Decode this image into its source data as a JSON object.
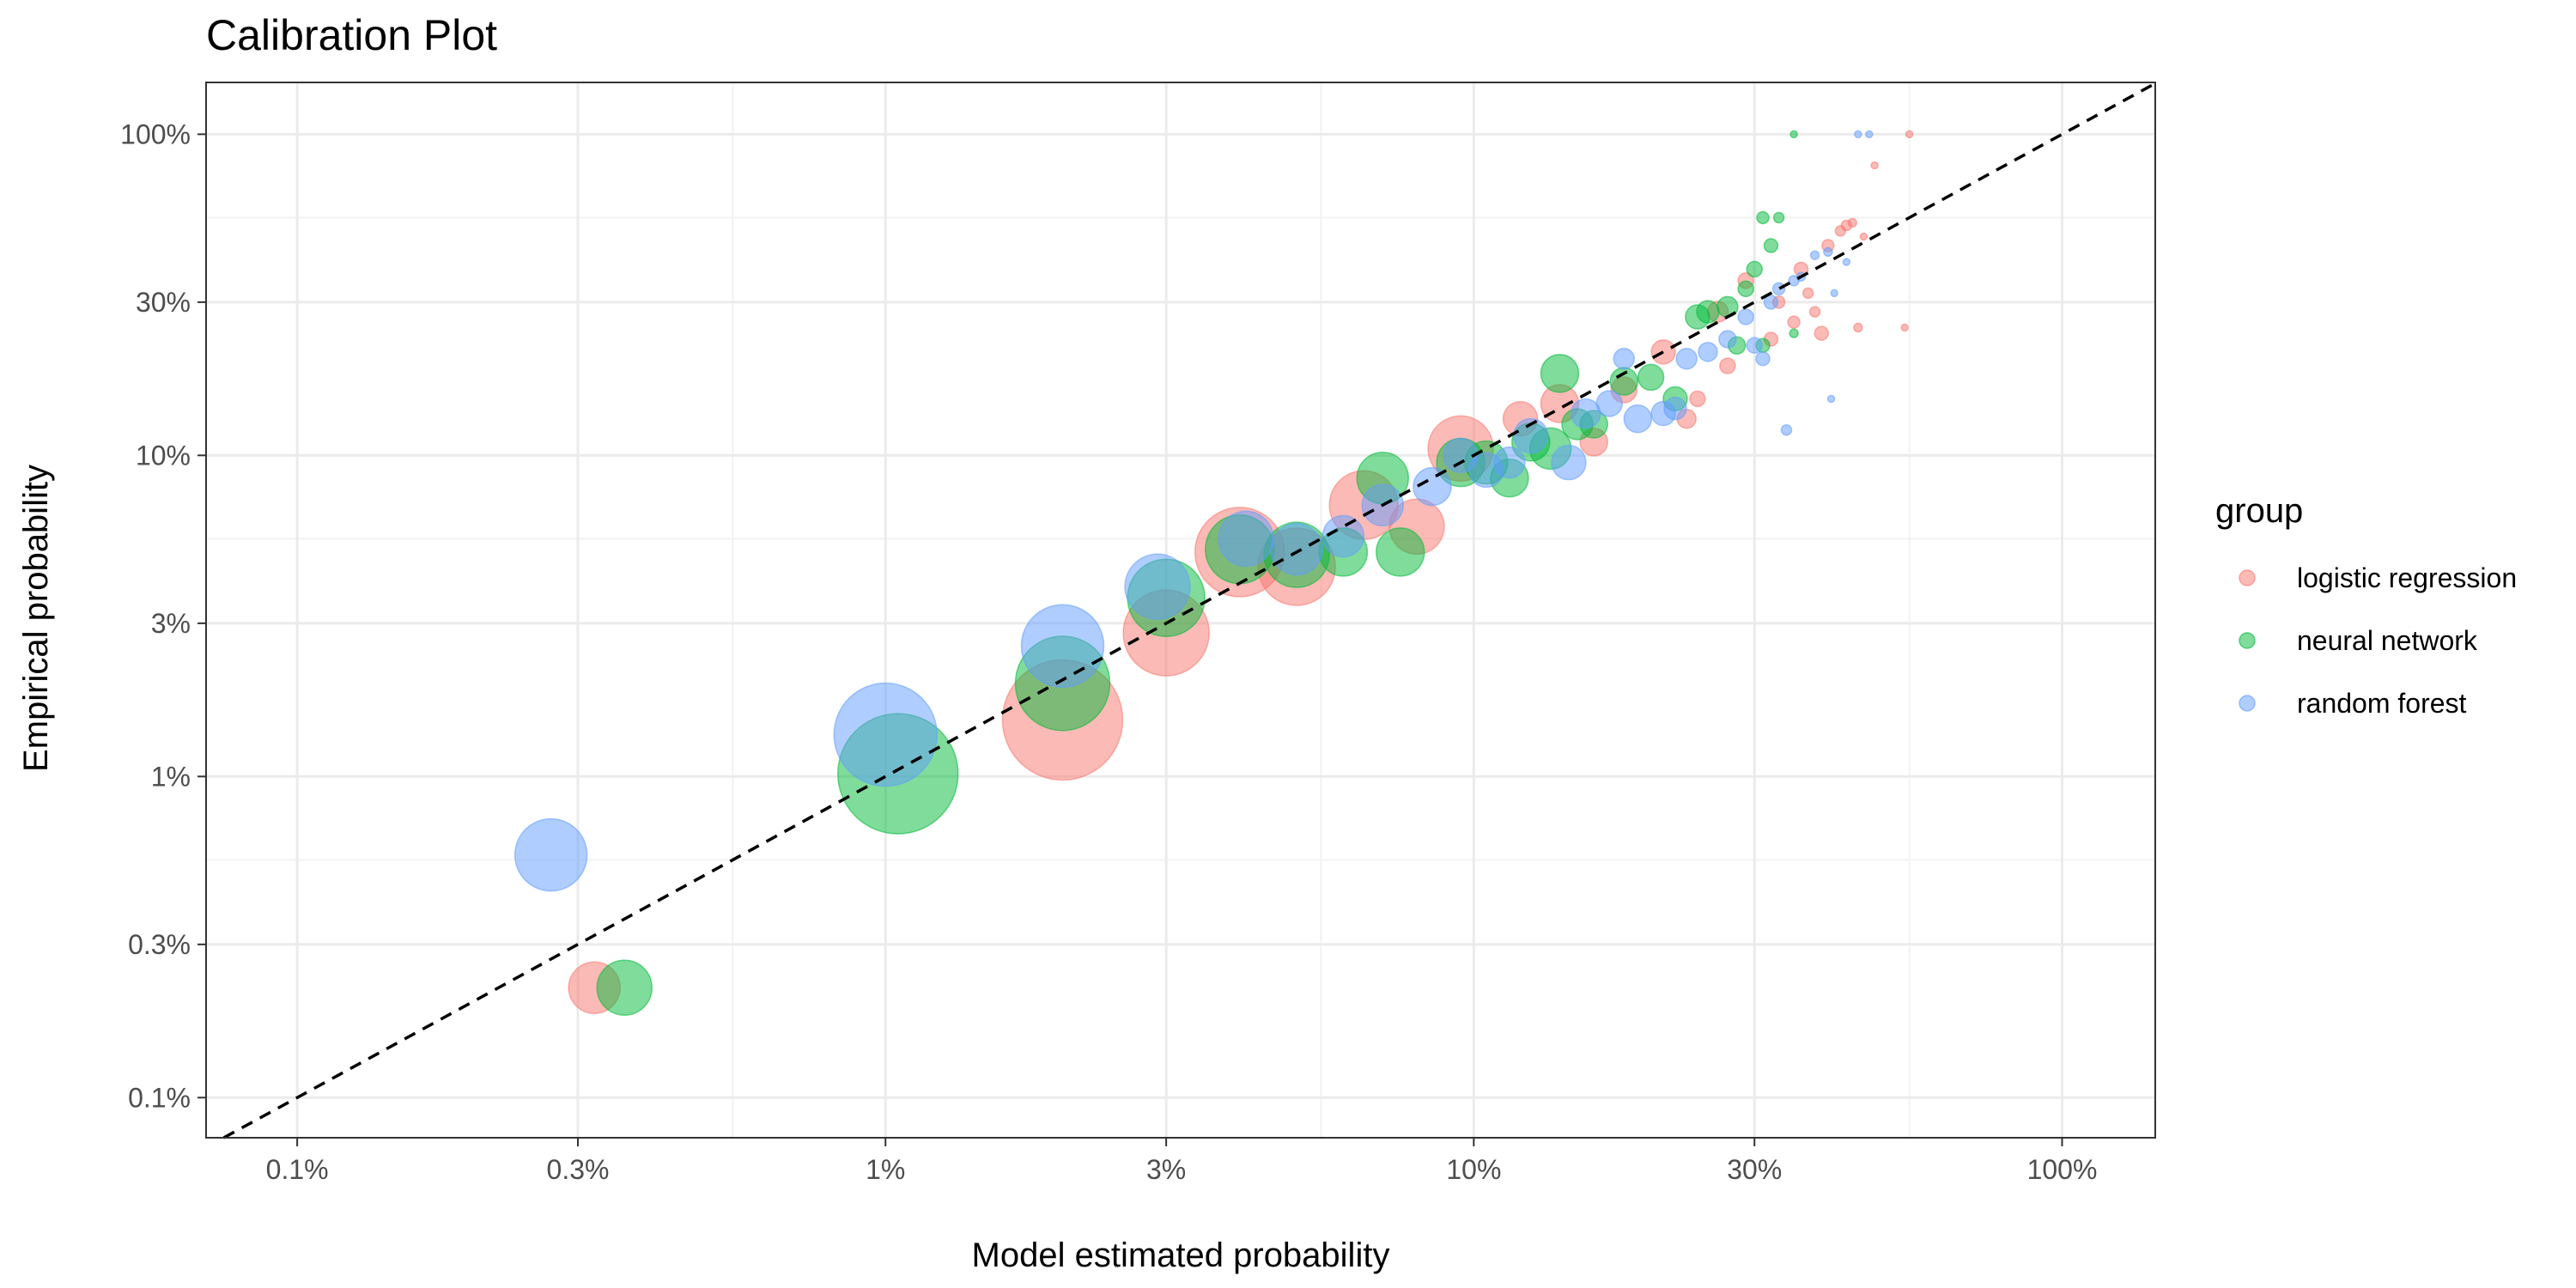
{
  "chart_data": {
    "type": "scatter",
    "title": "Calibration Plot",
    "xlabel": "Model estimated probability",
    "ylabel": "Empirical probability",
    "x_scale": "log",
    "y_scale": "log",
    "xlim": [
      0.0007,
      1.44
    ],
    "ylim": [
      0.00075,
      1.45
    ],
    "x_ticks": [
      {
        "value": 0.001,
        "label": "0.1%"
      },
      {
        "value": 0.003,
        "label": "0.3%"
      },
      {
        "value": 0.01,
        "label": "1%"
      },
      {
        "value": 0.03,
        "label": "3%"
      },
      {
        "value": 0.1,
        "label": "10%"
      },
      {
        "value": 0.3,
        "label": "30%"
      },
      {
        "value": 1.0,
        "label": "100%"
      }
    ],
    "y_ticks": [
      {
        "value": 0.001,
        "label": "0.1%"
      },
      {
        "value": 0.003,
        "label": "0.3%"
      },
      {
        "value": 0.01,
        "label": "1%"
      },
      {
        "value": 0.03,
        "label": "3%"
      },
      {
        "value": 0.1,
        "label": "10%"
      },
      {
        "value": 0.3,
        "label": "30%"
      },
      {
        "value": 1.0,
        "label": "100%"
      }
    ],
    "x_minor": [
      0.00055,
      0.0055,
      0.055,
      0.55
    ],
    "y_minor": [
      0.00055,
      0.0055,
      0.055,
      0.55
    ],
    "reference_line": "y = x (dashed)",
    "grid": true,
    "legend_title": "group",
    "legend_position": "right",
    "size_encoding": "point size varies with number of observations in bin (larger at low probability)",
    "series": [
      {
        "name": "logistic regression",
        "color": "#F8766D",
        "points": [
          {
            "x": 0.0032,
            "y": 0.0022,
            "size": 30
          },
          {
            "x": 0.02,
            "y": 0.015,
            "size": 70
          },
          {
            "x": 0.03,
            "y": 0.028,
            "size": 50
          },
          {
            "x": 0.04,
            "y": 0.05,
            "size": 52
          },
          {
            "x": 0.05,
            "y": 0.045,
            "size": 45
          },
          {
            "x": 0.065,
            "y": 0.07,
            "size": 40
          },
          {
            "x": 0.08,
            "y": 0.06,
            "size": 32
          },
          {
            "x": 0.095,
            "y": 0.105,
            "size": 38
          },
          {
            "x": 0.12,
            "y": 0.13,
            "size": 20
          },
          {
            "x": 0.14,
            "y": 0.145,
            "size": 22
          },
          {
            "x": 0.16,
            "y": 0.11,
            "size": 16
          },
          {
            "x": 0.18,
            "y": 0.16,
            "size": 15
          },
          {
            "x": 0.21,
            "y": 0.21,
            "size": 14
          },
          {
            "x": 0.23,
            "y": 0.13,
            "size": 11
          },
          {
            "x": 0.24,
            "y": 0.15,
            "size": 9
          },
          {
            "x": 0.26,
            "y": 0.28,
            "size": 12
          },
          {
            "x": 0.27,
            "y": 0.19,
            "size": 9
          },
          {
            "x": 0.29,
            "y": 0.35,
            "size": 9
          },
          {
            "x": 0.32,
            "y": 0.23,
            "size": 8
          },
          {
            "x": 0.33,
            "y": 0.3,
            "size": 7
          },
          {
            "x": 0.35,
            "y": 0.26,
            "size": 7
          },
          {
            "x": 0.36,
            "y": 0.38,
            "size": 8
          },
          {
            "x": 0.37,
            "y": 0.32,
            "size": 6
          },
          {
            "x": 0.38,
            "y": 0.28,
            "size": 6
          },
          {
            "x": 0.39,
            "y": 0.24,
            "size": 8
          },
          {
            "x": 0.4,
            "y": 0.45,
            "size": 7
          },
          {
            "x": 0.42,
            "y": 0.5,
            "size": 6
          },
          {
            "x": 0.43,
            "y": 0.52,
            "size": 6
          },
          {
            "x": 0.44,
            "y": 0.53,
            "size": 5
          },
          {
            "x": 0.45,
            "y": 0.25,
            "size": 5
          },
          {
            "x": 0.46,
            "y": 0.48,
            "size": 4
          },
          {
            "x": 0.48,
            "y": 0.8,
            "size": 4
          },
          {
            "x": 0.55,
            "y": 1.0,
            "size": 4
          },
          {
            "x": 0.54,
            "y": 0.25,
            "size": 4
          }
        ]
      },
      {
        "name": "neural network",
        "color": "#00BA38",
        "points": [
          {
            "x": 0.0036,
            "y": 0.0022,
            "size": 32
          },
          {
            "x": 0.0105,
            "y": 0.0102,
            "size": 70
          },
          {
            "x": 0.02,
            "y": 0.0195,
            "size": 55
          },
          {
            "x": 0.03,
            "y": 0.036,
            "size": 45
          },
          {
            "x": 0.04,
            "y": 0.051,
            "size": 40
          },
          {
            "x": 0.05,
            "y": 0.049,
            "size": 38
          },
          {
            "x": 0.06,
            "y": 0.05,
            "size": 28
          },
          {
            "x": 0.07,
            "y": 0.085,
            "size": 30
          },
          {
            "x": 0.075,
            "y": 0.05,
            "size": 28
          },
          {
            "x": 0.095,
            "y": 0.095,
            "size": 28
          },
          {
            "x": 0.105,
            "y": 0.095,
            "size": 25
          },
          {
            "x": 0.115,
            "y": 0.085,
            "size": 22
          },
          {
            "x": 0.125,
            "y": 0.11,
            "size": 22
          },
          {
            "x": 0.135,
            "y": 0.105,
            "size": 24
          },
          {
            "x": 0.14,
            "y": 0.18,
            "size": 22
          },
          {
            "x": 0.15,
            "y": 0.125,
            "size": 18
          },
          {
            "x": 0.16,
            "y": 0.125,
            "size": 16
          },
          {
            "x": 0.18,
            "y": 0.17,
            "size": 16
          },
          {
            "x": 0.2,
            "y": 0.175,
            "size": 15
          },
          {
            "x": 0.22,
            "y": 0.15,
            "size": 14
          },
          {
            "x": 0.24,
            "y": 0.27,
            "size": 14
          },
          {
            "x": 0.25,
            "y": 0.28,
            "size": 13
          },
          {
            "x": 0.27,
            "y": 0.29,
            "size": 12
          },
          {
            "x": 0.28,
            "y": 0.22,
            "size": 10
          },
          {
            "x": 0.29,
            "y": 0.33,
            "size": 9
          },
          {
            "x": 0.3,
            "y": 0.38,
            "size": 9
          },
          {
            "x": 0.31,
            "y": 0.22,
            "size": 8
          },
          {
            "x": 0.32,
            "y": 0.45,
            "size": 8
          },
          {
            "x": 0.31,
            "y": 0.55,
            "size": 7
          },
          {
            "x": 0.33,
            "y": 0.55,
            "size": 6
          },
          {
            "x": 0.35,
            "y": 0.24,
            "size": 5
          },
          {
            "x": 0.35,
            "y": 1.0,
            "size": 4
          }
        ]
      },
      {
        "name": "random forest",
        "color": "#619CFF",
        "points": [
          {
            "x": 0.0027,
            "y": 0.0057,
            "size": 42
          },
          {
            "x": 0.01,
            "y": 0.0135,
            "size": 60
          },
          {
            "x": 0.02,
            "y": 0.0255,
            "size": 48
          },
          {
            "x": 0.029,
            "y": 0.039,
            "size": 38
          },
          {
            "x": 0.041,
            "y": 0.055,
            "size": 32
          },
          {
            "x": 0.05,
            "y": 0.051,
            "size": 30
          },
          {
            "x": 0.06,
            "y": 0.056,
            "size": 24
          },
          {
            "x": 0.07,
            "y": 0.07,
            "size": 24
          },
          {
            "x": 0.085,
            "y": 0.08,
            "size": 22
          },
          {
            "x": 0.095,
            "y": 0.1,
            "size": 20
          },
          {
            "x": 0.105,
            "y": 0.09,
            "size": 20
          },
          {
            "x": 0.115,
            "y": 0.095,
            "size": 18
          },
          {
            "x": 0.125,
            "y": 0.115,
            "size": 20
          },
          {
            "x": 0.145,
            "y": 0.095,
            "size": 20
          },
          {
            "x": 0.155,
            "y": 0.135,
            "size": 17
          },
          {
            "x": 0.17,
            "y": 0.145,
            "size": 15
          },
          {
            "x": 0.18,
            "y": 0.2,
            "size": 12
          },
          {
            "x": 0.19,
            "y": 0.13,
            "size": 16
          },
          {
            "x": 0.21,
            "y": 0.135,
            "size": 14
          },
          {
            "x": 0.22,
            "y": 0.14,
            "size": 13
          },
          {
            "x": 0.23,
            "y": 0.2,
            "size": 12
          },
          {
            "x": 0.25,
            "y": 0.21,
            "size": 11
          },
          {
            "x": 0.27,
            "y": 0.23,
            "size": 10
          },
          {
            "x": 0.29,
            "y": 0.27,
            "size": 9
          },
          {
            "x": 0.3,
            "y": 0.22,
            "size": 9
          },
          {
            "x": 0.31,
            "y": 0.2,
            "size": 8
          },
          {
            "x": 0.32,
            "y": 0.3,
            "size": 8
          },
          {
            "x": 0.33,
            "y": 0.33,
            "size": 7
          },
          {
            "x": 0.34,
            "y": 0.12,
            "size": 6
          },
          {
            "x": 0.35,
            "y": 0.35,
            "size": 6
          },
          {
            "x": 0.36,
            "y": 0.36,
            "size": 5
          },
          {
            "x": 0.38,
            "y": 0.42,
            "size": 5
          },
          {
            "x": 0.4,
            "y": 0.43,
            "size": 5
          },
          {
            "x": 0.41,
            "y": 0.32,
            "size": 4
          },
          {
            "x": 0.405,
            "y": 0.15,
            "size": 4
          },
          {
            "x": 0.43,
            "y": 0.4,
            "size": 4
          },
          {
            "x": 0.45,
            "y": 1.0,
            "size": 4
          },
          {
            "x": 0.47,
            "y": 1.0,
            "size": 4
          }
        ]
      }
    ]
  }
}
